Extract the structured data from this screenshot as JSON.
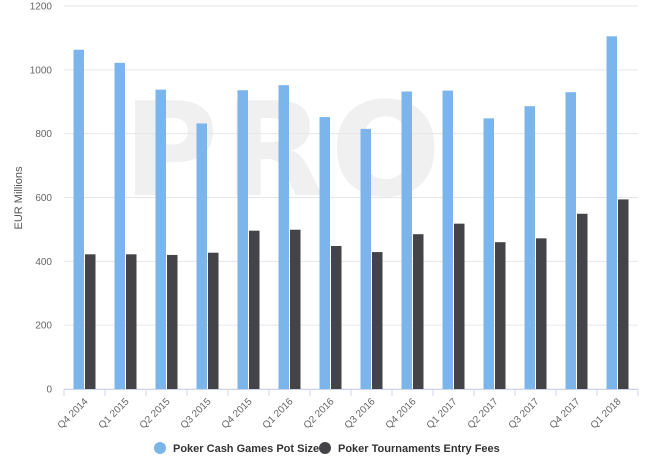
{
  "watermark": "PRO",
  "chart_data": {
    "type": "bar",
    "title": "",
    "xlabel": "",
    "ylabel": "EUR Millions",
    "ylim": [
      0,
      1200
    ],
    "yticks": [
      0,
      200,
      400,
      600,
      800,
      1000,
      1200
    ],
    "grid": true,
    "legend_position": "bottom-center",
    "categories": [
      "Q4 2014",
      "Q1 2015",
      "Q2 2015",
      "Q3 2015",
      "Q4 2015",
      "Q1 2016",
      "Q2 2016",
      "Q3 2016",
      "Q4 2016",
      "Q1 2017",
      "Q2 2017",
      "Q3 2017",
      "Q4 2017",
      "Q1 2018"
    ],
    "series": [
      {
        "name": "Poker Cash Games Pot Size",
        "color": "#7cb5ec",
        "values": [
          1063,
          1022,
          938,
          832,
          936,
          952,
          852,
          815,
          932,
          935,
          848,
          886,
          930,
          1105
        ]
      },
      {
        "name": "Poker Tournaments Entry Fees",
        "color": "#434348",
        "values": [
          422,
          422,
          420,
          427,
          496,
          499,
          448,
          429,
          485,
          518,
          460,
          472,
          549,
          594
        ]
      }
    ]
  }
}
